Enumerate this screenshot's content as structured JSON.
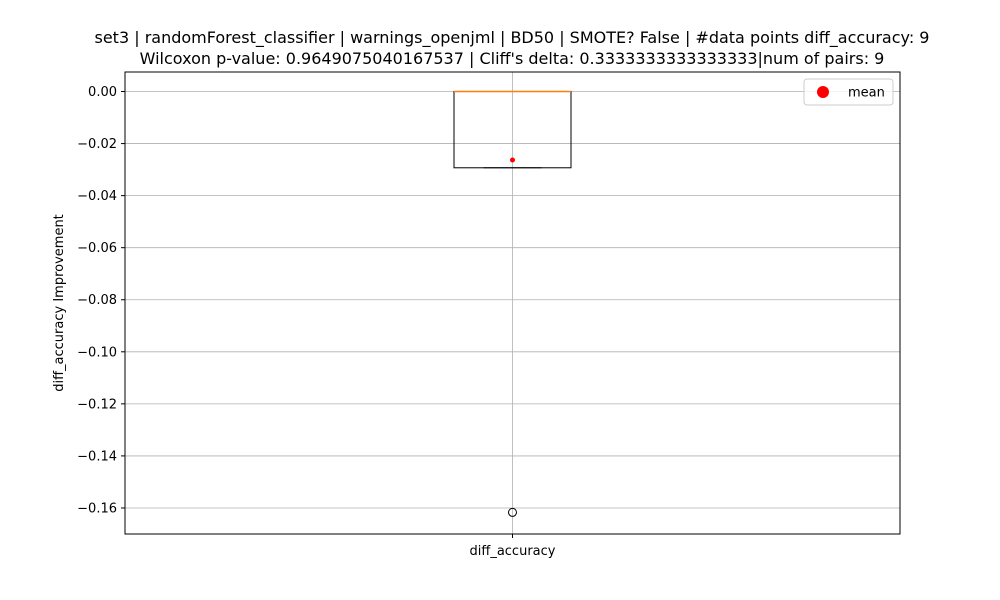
{
  "chart_data": {
    "type": "box",
    "title_lines": [
      "set3 | randomForest_classifier | warnings_openjml | BD50 | SMOTE? False | #data points diff_accuracy: 9",
      "Wilcoxon p-value: 0.9649075040167537 | Cliff's delta: 0.3333333333333333|num of pairs: 9"
    ],
    "xlabel": "",
    "ylabel": "diff_accuracy Improvement",
    "categories": [
      "diff_accuracy"
    ],
    "ylim": [
      -0.17,
      0.0075
    ],
    "yticks": [
      0.0,
      -0.02,
      -0.04,
      -0.06,
      -0.08,
      -0.1,
      -0.12,
      -0.14,
      -0.16
    ],
    "ytick_labels": [
      "0.00",
      "−0.02",
      "−0.04",
      "−0.06",
      "−0.08",
      "−0.10",
      "−0.12",
      "−0.14",
      "−0.16"
    ],
    "grid": true,
    "legend": {
      "entries": [
        "mean"
      ],
      "placement": "top-right"
    },
    "box": {
      "q1": -0.0293,
      "median": 0.0,
      "q3": 0.0,
      "whisker_low": -0.0293,
      "whisker_high": 0.0,
      "mean": -0.0263,
      "outliers": [
        -0.1617
      ]
    },
    "colors": {
      "median": "#ff7f0e",
      "mean": "#ff0000",
      "box": "#000000",
      "grid": "#b0b0b0"
    }
  }
}
